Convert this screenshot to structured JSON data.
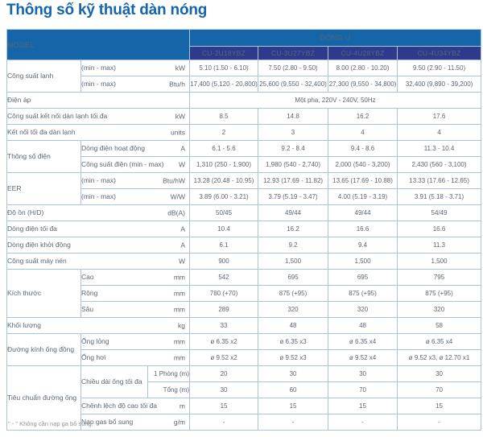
{
  "page": {
    "title": "Thông số kỹ thuật dàn nóng",
    "footnote": "\" - \" Không cần nạp ga bổ sung."
  },
  "colors": {
    "header_blue": "#1565a9",
    "model_navy": "#2e3a8c",
    "border_light_blue": "#a9c3de",
    "body_text": "#5a6673",
    "title_blue": "#1565a9"
  },
  "table": {
    "rows": [
      {
        "c": "head-row",
        "n": "table-header-row",
        "cells": [
          {
            "l": "MODEL",
            "c": "model-head",
            "n": "model-header-cell",
            "cs": 3,
            "rs": 2
          },
          {
            "l": "DÒNG U",
            "c": "series-head",
            "n": "series-header-cell",
            "cs": 4
          }
        ]
      },
      {
        "c": "model-row",
        "n": "model-names-row",
        "cells": [
          {
            "l": "CU-2U18YBZ",
            "c": "model-name",
            "n": "model-name-cell"
          },
          {
            "l": "CU-3U27YBZ",
            "c": "model-name",
            "n": "model-name-cell"
          },
          {
            "l": "CU-4U28YBZ",
            "c": "model-name",
            "n": "model-name-cell"
          },
          {
            "l": "CU-4U34YBZ",
            "c": "model-name",
            "n": "model-name-cell"
          }
        ]
      },
      {
        "cells": [
          {
            "l": "Công suất lạnh",
            "rs": 2,
            "n": "row-group-label-cell"
          },
          {
            "l": "(min - max)",
            "u": "kW",
            "cs": 2,
            "n": "row-label-cell"
          },
          {
            "v": "5.10 (1.50 - 6.10)"
          },
          {
            "v": "7.50 (2.80 - 9.50)"
          },
          {
            "v": "8.00 (2.80 - 10.20)"
          },
          {
            "v": "9.50 (2.90 - 11.50)"
          }
        ]
      },
      {
        "cells": [
          {
            "l": "(min - max)",
            "u": "Btu/h",
            "cs": 2,
            "n": "row-label-cell"
          },
          {
            "v": "17,400 (5,120 - 20,800)"
          },
          {
            "v": "25,600 (9,550 - 32,400)"
          },
          {
            "v": "27,300 (9,550 - 34,800)"
          },
          {
            "v": "32,400 (9,890 - 39,200)"
          }
        ]
      },
      {
        "cells": [
          {
            "l": "Điện áp",
            "cs": 3,
            "n": "row-label-cell"
          },
          {
            "v": "Một pha, 220V - 240V, 50Hz",
            "cs": 4,
            "n": "value-span-cell"
          }
        ]
      },
      {
        "cells": [
          {
            "l": "Công suất kết nối dàn lạnh tối đa",
            "u": "kW",
            "cs": 3,
            "n": "row-label-cell"
          },
          {
            "v": "8.5"
          },
          {
            "v": "14.8"
          },
          {
            "v": "16.2"
          },
          {
            "v": "17.6"
          }
        ]
      },
      {
        "cells": [
          {
            "l": "Kết nối tối đa dàn lạnh",
            "u": "units",
            "cs": 3,
            "n": "row-label-cell"
          },
          {
            "v": "2"
          },
          {
            "v": "3"
          },
          {
            "v": "4"
          },
          {
            "v": "4"
          }
        ]
      },
      {
        "cells": [
          {
            "l": "Thông số điện",
            "rs": 2,
            "n": "row-group-label-cell"
          },
          {
            "l": "Dòng điện hoạt động",
            "u": "A",
            "cs": 2,
            "n": "row-label-cell"
          },
          {
            "v": "6.1 - 5.6"
          },
          {
            "v": "9.2 - 8.4"
          },
          {
            "v": "9.4 - 8.6"
          },
          {
            "v": "11.3 - 10.4"
          }
        ]
      },
      {
        "cells": [
          {
            "l": "Công suất điện (min - max)",
            "u": "W",
            "cs": 2,
            "n": "row-label-cell"
          },
          {
            "v": "1,310 (250 - 1,900)"
          },
          {
            "v": "1,980 (540 - 2,740)"
          },
          {
            "v": "2,000 (540 - 3,200)"
          },
          {
            "v": "2,430 (560 - 3,100)"
          }
        ]
      },
      {
        "cells": [
          {
            "l": "EER",
            "rs": 2,
            "n": "row-group-label-cell"
          },
          {
            "l": "(min - max)",
            "u": "Btu/hW",
            "cs": 2,
            "n": "row-label-cell"
          },
          {
            "v": "13.28 (20.48 - 10.95)"
          },
          {
            "v": "12.93 (17.69 - 11.82)"
          },
          {
            "v": "13.65 (17.69 - 10.88)"
          },
          {
            "v": "13.33 (17.66 - 12.65)"
          }
        ]
      },
      {
        "cells": [
          {
            "l": "(min - max)",
            "u": "W/W",
            "cs": 2,
            "n": "row-label-cell"
          },
          {
            "v": "3.89 (6.00 - 3.21)"
          },
          {
            "v": "3.79 (5.19 - 3.47)"
          },
          {
            "v": "4.00 (5.19 - 3.19)"
          },
          {
            "v": "3.91 (5.18 - 3.71)"
          }
        ]
      },
      {
        "cells": [
          {
            "l": "Độ ồn (H/D)",
            "u": "dB(A)",
            "cs": 3,
            "n": "row-label-cell"
          },
          {
            "v": "50/45"
          },
          {
            "v": "49/44"
          },
          {
            "v": "49/44"
          },
          {
            "v": "54/49"
          }
        ]
      },
      {
        "cells": [
          {
            "l": "Dòng điện tối đa",
            "u": "A",
            "cs": 3,
            "n": "row-label-cell"
          },
          {
            "v": "10.4"
          },
          {
            "v": "16.2"
          },
          {
            "v": "16.6"
          },
          {
            "v": "16.6"
          }
        ]
      },
      {
        "cells": [
          {
            "l": "Dòng điện khởi động",
            "u": "A",
            "cs": 3,
            "n": "row-label-cell"
          },
          {
            "v": "6.1"
          },
          {
            "v": "9.2"
          },
          {
            "v": "9.4"
          },
          {
            "v": "11.3"
          }
        ]
      },
      {
        "cells": [
          {
            "l": "Công suất máy nén",
            "u": "W",
            "cs": 3,
            "n": "row-label-cell"
          },
          {
            "v": "900"
          },
          {
            "v": "1,500"
          },
          {
            "v": "1,500"
          },
          {
            "v": "1,500"
          }
        ]
      },
      {
        "cells": [
          {
            "l": "Kích thước",
            "rs": 3,
            "n": "row-group-label-cell"
          },
          {
            "l": "Cao",
            "u": "mm",
            "cs": 2,
            "n": "row-label-cell"
          },
          {
            "v": "542"
          },
          {
            "v": "695"
          },
          {
            "v": "695"
          },
          {
            "v": "795"
          }
        ]
      },
      {
        "cells": [
          {
            "l": "Rộng",
            "u": "mm",
            "cs": 2,
            "n": "row-label-cell"
          },
          {
            "v": "780 (+70)"
          },
          {
            "v": "875 (+95)"
          },
          {
            "v": "875 (+95)"
          },
          {
            "v": "875 (+95)"
          }
        ]
      },
      {
        "cells": [
          {
            "l": "Sâu",
            "u": "mm",
            "cs": 2,
            "n": "row-label-cell"
          },
          {
            "v": "289"
          },
          {
            "v": "320"
          },
          {
            "v": "320"
          },
          {
            "v": "320"
          }
        ]
      },
      {
        "cells": [
          {
            "l": "Khối lượng",
            "u": "kg",
            "cs": 3,
            "n": "row-label-cell"
          },
          {
            "v": "33"
          },
          {
            "v": "48"
          },
          {
            "v": "48"
          },
          {
            "v": "58"
          }
        ]
      },
      {
        "cells": [
          {
            "l": "Đường kính ống đồng",
            "rs": 2,
            "n": "row-group-label-cell"
          },
          {
            "l": "Ống lỏng",
            "u": "mm",
            "cs": 2,
            "n": "row-label-cell"
          },
          {
            "v": "ø 6.35 x2"
          },
          {
            "v": "ø 6.35 x3"
          },
          {
            "v": "ø 6.35 x4"
          },
          {
            "v": "ø 6.35 x4"
          }
        ]
      },
      {
        "cells": [
          {
            "l": "Ống hơi",
            "u": "mm",
            "cs": 2,
            "n": "row-label-cell"
          },
          {
            "v": "ø 9.52 x2"
          },
          {
            "v": "ø 9.52 x3"
          },
          {
            "v": "ø 9.52 x4"
          },
          {
            "v": "ø 9.52 x3, ø 12.70 x1"
          }
        ]
      },
      {
        "cells": [
          {
            "l": "Tiêu chuẩn đường ống",
            "rs": 4,
            "n": "row-group-label-cell"
          },
          {
            "l": "Chiều dài ống tối đa",
            "rs": 2,
            "n": "row-label-cell"
          },
          {
            "l": "1 Phòng (m)",
            "c": "subsub",
            "n": "sub-row-label-cell"
          },
          {
            "v": "20"
          },
          {
            "v": "30"
          },
          {
            "v": "30"
          },
          {
            "v": "30"
          }
        ]
      },
      {
        "cells": [
          {
            "l": "Tổng (m)",
            "c": "subsub",
            "n": "sub-row-label-cell"
          },
          {
            "v": "30"
          },
          {
            "v": "60"
          },
          {
            "v": "70"
          },
          {
            "v": "70"
          }
        ]
      },
      {
        "cells": [
          {
            "l": "Chênh lệch độ cao tối đa",
            "u": "m",
            "cs": 2,
            "n": "row-label-cell"
          },
          {
            "v": "15"
          },
          {
            "v": "15"
          },
          {
            "v": "15"
          },
          {
            "v": "15"
          }
        ]
      },
      {
        "cells": [
          {
            "l": "Nạp gas bổ sung",
            "u": "g/m",
            "cs": 2,
            "n": "row-label-cell"
          },
          {
            "v": "-"
          },
          {
            "v": "-"
          },
          {
            "v": "-"
          },
          {
            "v": "-"
          }
        ]
      }
    ]
  }
}
